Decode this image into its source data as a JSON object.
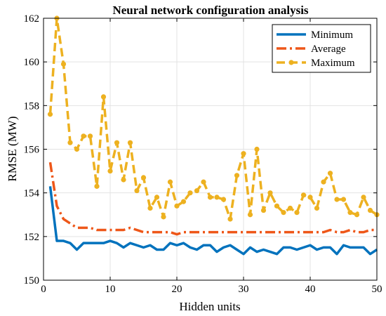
{
  "chart_data": {
    "type": "line",
    "title": "Neural network configuration analysis",
    "xlabel": "Hidden units",
    "ylabel": "RMSE (MW)",
    "xlim": [
      0,
      50
    ],
    "ylim": [
      150,
      162
    ],
    "xticks": [
      0,
      10,
      20,
      30,
      40,
      50
    ],
    "yticks": [
      150,
      152,
      154,
      156,
      158,
      160,
      162
    ],
    "grid": true,
    "legend_position": "top-right",
    "x": [
      1,
      2,
      3,
      4,
      5,
      6,
      7,
      8,
      9,
      10,
      11,
      12,
      13,
      14,
      15,
      16,
      17,
      18,
      19,
      20,
      21,
      22,
      23,
      24,
      25,
      26,
      27,
      28,
      29,
      30,
      31,
      32,
      33,
      34,
      35,
      36,
      37,
      38,
      39,
      40,
      41,
      42,
      43,
      44,
      45,
      46,
      47,
      48,
      49,
      50
    ],
    "series": [
      {
        "name": "Minimum",
        "color": "#0072BD",
        "style": "solid",
        "values": [
          154.3,
          151.8,
          151.8,
          151.7,
          151.4,
          151.7,
          151.7,
          151.7,
          151.7,
          151.8,
          151.7,
          151.5,
          151.7,
          151.6,
          151.5,
          151.6,
          151.4,
          151.4,
          151.7,
          151.6,
          151.7,
          151.5,
          151.4,
          151.6,
          151.6,
          151.3,
          151.5,
          151.6,
          151.4,
          151.2,
          151.5,
          151.3,
          151.4,
          151.3,
          151.2,
          151.5,
          151.5,
          151.4,
          151.5,
          151.6,
          151.4,
          151.5,
          151.5,
          151.2,
          151.6,
          151.5,
          151.5,
          151.5,
          151.2,
          151.4
        ]
      },
      {
        "name": "Average",
        "color": "#EE5719",
        "style": "dashdot",
        "values": [
          155.4,
          153.4,
          152.8,
          152.6,
          152.4,
          152.4,
          152.4,
          152.3,
          152.3,
          152.3,
          152.3,
          152.3,
          152.4,
          152.3,
          152.2,
          152.2,
          152.2,
          152.2,
          152.2,
          152.1,
          152.2,
          152.2,
          152.2,
          152.2,
          152.2,
          152.2,
          152.2,
          152.2,
          152.2,
          152.2,
          152.2,
          152.2,
          152.2,
          152.2,
          152.2,
          152.2,
          152.2,
          152.2,
          152.2,
          152.2,
          152.2,
          152.2,
          152.3,
          152.2,
          152.2,
          152.3,
          152.2,
          152.2,
          152.3,
          152.3
        ]
      },
      {
        "name": "Maximum",
        "color": "#EDB120",
        "style": "dashed-markers",
        "values": [
          157.6,
          162.0,
          159.9,
          156.3,
          156.0,
          156.6,
          156.6,
          154.3,
          158.4,
          155.0,
          156.3,
          154.6,
          156.3,
          154.1,
          154.7,
          153.3,
          153.8,
          152.9,
          154.5,
          153.4,
          153.6,
          154.0,
          154.1,
          154.5,
          153.8,
          153.8,
          153.7,
          152.8,
          154.8,
          155.8,
          153.0,
          156.0,
          153.2,
          154.0,
          153.4,
          153.1,
          153.3,
          153.1,
          153.9,
          153.8,
          153.3,
          154.5,
          154.9,
          153.7,
          153.7,
          153.1,
          153.0,
          153.8,
          153.2,
          153.0
        ]
      }
    ]
  }
}
